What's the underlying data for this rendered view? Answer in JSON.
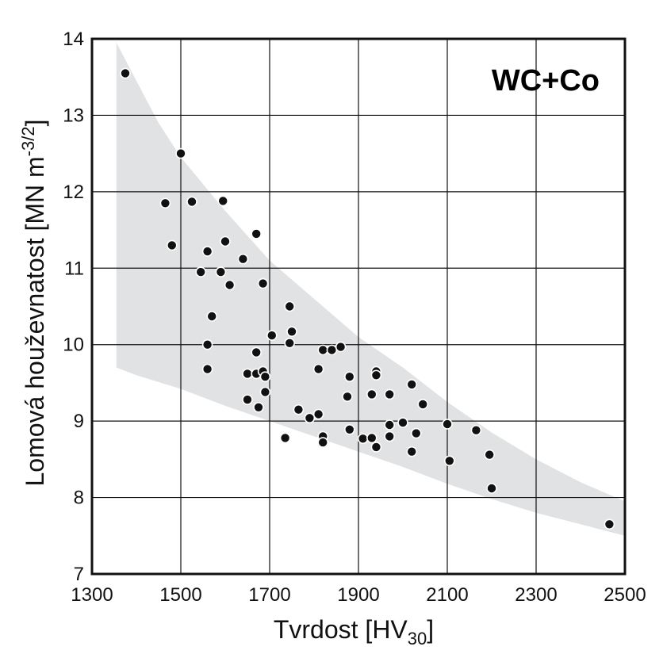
{
  "chart_data": {
    "type": "scatter",
    "title": "",
    "annotation": "WC+Co",
    "xlabel": {
      "main": "Tvrdost [HV",
      "sub": "30",
      "end": "]"
    },
    "ylabel": {
      "main": "Lomová houževnatost [MN m",
      "sup": "-3/2",
      "end": "]"
    },
    "xlim": [
      1300,
      2500
    ],
    "ylim": [
      7,
      14
    ],
    "xticks": [
      "1300",
      "1500",
      "1700",
      "1900",
      "2100",
      "2300",
      "2500"
    ],
    "yticks": [
      "7",
      "8",
      "9",
      "10",
      "11",
      "12",
      "13",
      "14"
    ],
    "grid": true,
    "band_color": "#e1e2e3",
    "point_color": "#111111",
    "band": {
      "upper": [
        [
          1355,
          13.95
        ],
        [
          1400,
          13.45
        ],
        [
          1450,
          12.9
        ],
        [
          1500,
          12.45
        ],
        [
          1600,
          11.75
        ],
        [
          1700,
          11.1
        ],
        [
          1800,
          10.6
        ],
        [
          1900,
          10.1
        ],
        [
          2000,
          9.7
        ],
        [
          2100,
          9.25
        ],
        [
          2200,
          8.85
        ],
        [
          2300,
          8.5
        ],
        [
          2400,
          8.2
        ],
        [
          2500,
          7.95
        ]
      ],
      "lower": [
        [
          2500,
          7.5
        ],
        [
          2400,
          7.65
        ],
        [
          2300,
          7.8
        ],
        [
          2200,
          7.98
        ],
        [
          2100,
          8.18
        ],
        [
          2000,
          8.4
        ],
        [
          1900,
          8.6
        ],
        [
          1800,
          8.8
        ],
        [
          1700,
          9.0
        ],
        [
          1600,
          9.2
        ],
        [
          1500,
          9.42
        ],
        [
          1400,
          9.6
        ],
        [
          1355,
          9.7
        ]
      ]
    },
    "points": [
      [
        1375,
        13.55
      ],
      [
        1500,
        12.5
      ],
      [
        1465,
        11.85
      ],
      [
        1525,
        11.87
      ],
      [
        1595,
        11.88
      ],
      [
        1480,
        11.3
      ],
      [
        1560,
        11.22
      ],
      [
        1600,
        11.35
      ],
      [
        1670,
        11.45
      ],
      [
        1640,
        11.12
      ],
      [
        1545,
        10.95
      ],
      [
        1590,
        10.95
      ],
      [
        1610,
        10.78
      ],
      [
        1685,
        10.8
      ],
      [
        1570,
        10.37
      ],
      [
        1745,
        10.5
      ],
      [
        1705,
        10.12
      ],
      [
        1750,
        10.17
      ],
      [
        1745,
        10.02
      ],
      [
        1560,
        10.0
      ],
      [
        1670,
        9.9
      ],
      [
        1820,
        9.93
      ],
      [
        1840,
        9.93
      ],
      [
        1860,
        9.97
      ],
      [
        1560,
        9.68
      ],
      [
        1650,
        9.62
      ],
      [
        1670,
        9.62
      ],
      [
        1685,
        9.65
      ],
      [
        1690,
        9.58
      ],
      [
        1810,
        9.68
      ],
      [
        1880,
        9.58
      ],
      [
        1940,
        9.65
      ],
      [
        1940,
        9.6
      ],
      [
        1650,
        9.28
      ],
      [
        1690,
        9.38
      ],
      [
        1675,
        9.18
      ],
      [
        1765,
        9.15
      ],
      [
        1875,
        9.32
      ],
      [
        1930,
        9.35
      ],
      [
        1970,
        9.35
      ],
      [
        2020,
        9.48
      ],
      [
        2045,
        9.22
      ],
      [
        1790,
        9.04
      ],
      [
        1810,
        9.09
      ],
      [
        1970,
        8.95
      ],
      [
        2000,
        8.98
      ],
      [
        2100,
        8.96
      ],
      [
        2165,
        8.88
      ],
      [
        1880,
        8.89
      ],
      [
        1735,
        8.78
      ],
      [
        1820,
        8.8
      ],
      [
        1820,
        8.72
      ],
      [
        1910,
        8.77
      ],
      [
        1930,
        8.78
      ],
      [
        1970,
        8.8
      ],
      [
        2030,
        8.84
      ],
      [
        1940,
        8.66
      ],
      [
        2020,
        8.6
      ],
      [
        2195,
        8.56
      ],
      [
        2105,
        8.48
      ],
      [
        2200,
        8.12
      ],
      [
        2465,
        7.65
      ]
    ]
  }
}
